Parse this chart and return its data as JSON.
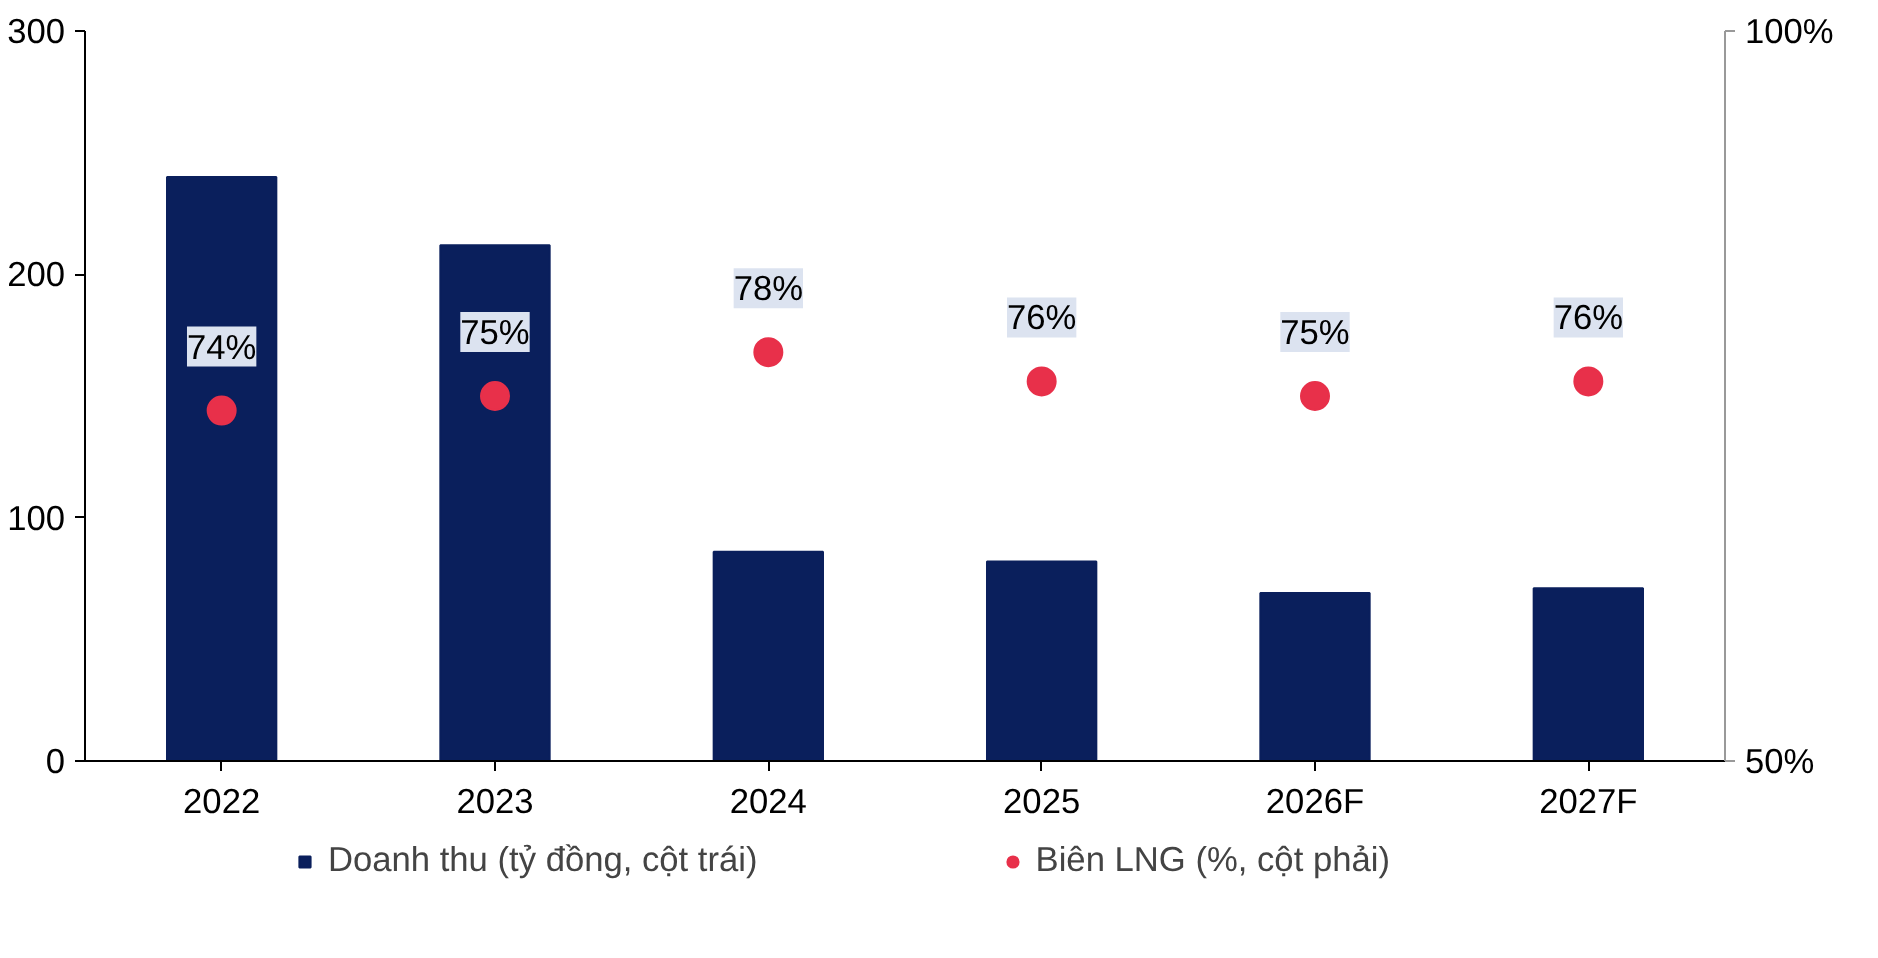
{
  "chart_data": {
    "type": "bar",
    "categories": [
      "2022",
      "2023",
      "2024",
      "2025",
      "2026F",
      "2027F"
    ],
    "series": [
      {
        "name": "Doanh thu (tỷ đồng, cột trái)",
        "type": "bar",
        "color": "#0a1f5c",
        "values": [
          240,
          212,
          86,
          82,
          69,
          71
        ]
      },
      {
        "name": "Biên LNG (%, cột phải)",
        "type": "scatter",
        "axis": "y2",
        "color": "#e8304a",
        "values": [
          74,
          75,
          78,
          76,
          75,
          76
        ],
        "value_labels": [
          "74%",
          "75%",
          "78%",
          "76%",
          "75%",
          "76%"
        ]
      }
    ],
    "ylim": [
      0,
      300
    ],
    "yticks": [
      0,
      100,
      200,
      300
    ],
    "y2lim": [
      50,
      100
    ],
    "y2ticks": [
      {
        "value": 50,
        "label": "50%"
      },
      {
        "value": 100,
        "label": "100%"
      }
    ],
    "legend": "bottom",
    "grid": false,
    "marker": "circle"
  }
}
